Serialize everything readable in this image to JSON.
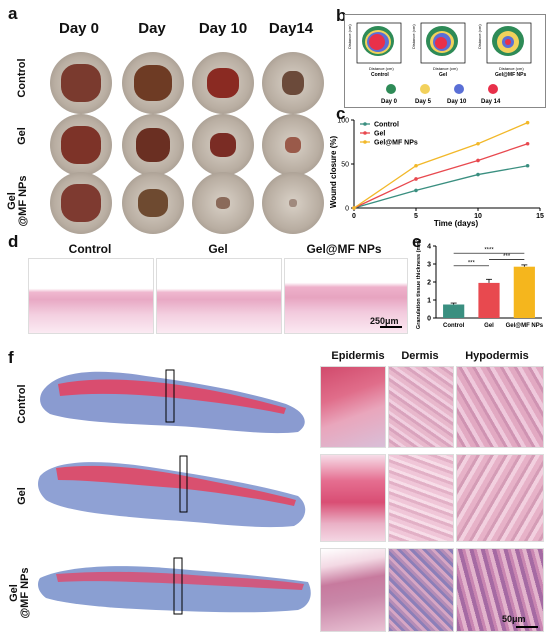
{
  "panel_a": {
    "label": "a",
    "day_headers": [
      "Day 0",
      "Day",
      "Day 10",
      "Day14"
    ],
    "row_labels": [
      "Control",
      "Gel",
      "Gel\n@MF NPs"
    ]
  },
  "panel_b": {
    "label": "b",
    "plot_ylabel": "Distance (cm)",
    "plot_xlabel": "Distance (cm)",
    "groups": [
      "Control",
      "Gel",
      "Gel@MF NPs"
    ],
    "legend": [
      "Day 0",
      "Day 5",
      "Day 10",
      "Day 14"
    ],
    "legend_colors": [
      "#2e8b57",
      "#f2d15c",
      "#5a6fd6",
      "#e8304a"
    ]
  },
  "panel_c": {
    "label": "c",
    "chart_data": {
      "type": "line",
      "xlabel": "Time (days)",
      "ylabel": "Wound closure (%)",
      "x": [
        0,
        5,
        10,
        14
      ],
      "xticks": [
        "0",
        "5",
        "10",
        "15"
      ],
      "yticks": [
        "0",
        "50",
        "100"
      ],
      "xlim": [
        0,
        15
      ],
      "ylim": [
        0,
        100
      ],
      "legend_position": "top-left",
      "series": [
        {
          "name": "Control",
          "color": "#3a8f80",
          "values": [
            0,
            20,
            38,
            48
          ]
        },
        {
          "name": "Gel",
          "color": "#e8494f",
          "values": [
            0,
            33,
            54,
            73
          ]
        },
        {
          "name": "Gel@MF NPs",
          "color": "#f2b829",
          "values": [
            0,
            48,
            73,
            97
          ]
        }
      ]
    }
  },
  "panel_d": {
    "label": "d",
    "headers": [
      "Control",
      "Gel",
      "Gel@MF NPs"
    ],
    "scale_bar": "250μm"
  },
  "panel_e": {
    "label": "e",
    "chart_data": {
      "type": "bar",
      "ylabel": "Granulation tissue thickness (mm)",
      "categories": [
        "Control",
        "Gel",
        "Gel@MF NPs"
      ],
      "values": [
        0.75,
        1.95,
        2.85
      ],
      "errors": [
        0.08,
        0.2,
        0.1
      ],
      "colors": [
        "#3a8f80",
        "#e8494f",
        "#f5b61d"
      ],
      "ylim": [
        0,
        4
      ],
      "yticks": [
        "0",
        "1",
        "2",
        "3",
        "4"
      ],
      "significance": [
        "****",
        "***",
        "***"
      ]
    }
  },
  "panel_f": {
    "label": "f",
    "column_headers": [
      "Epidermis",
      "Dermis",
      "Hypodermis"
    ],
    "row_labels": [
      "Control",
      "Gel",
      "Gel\n@MF NPs"
    ],
    "scale_bar": "50μm"
  }
}
